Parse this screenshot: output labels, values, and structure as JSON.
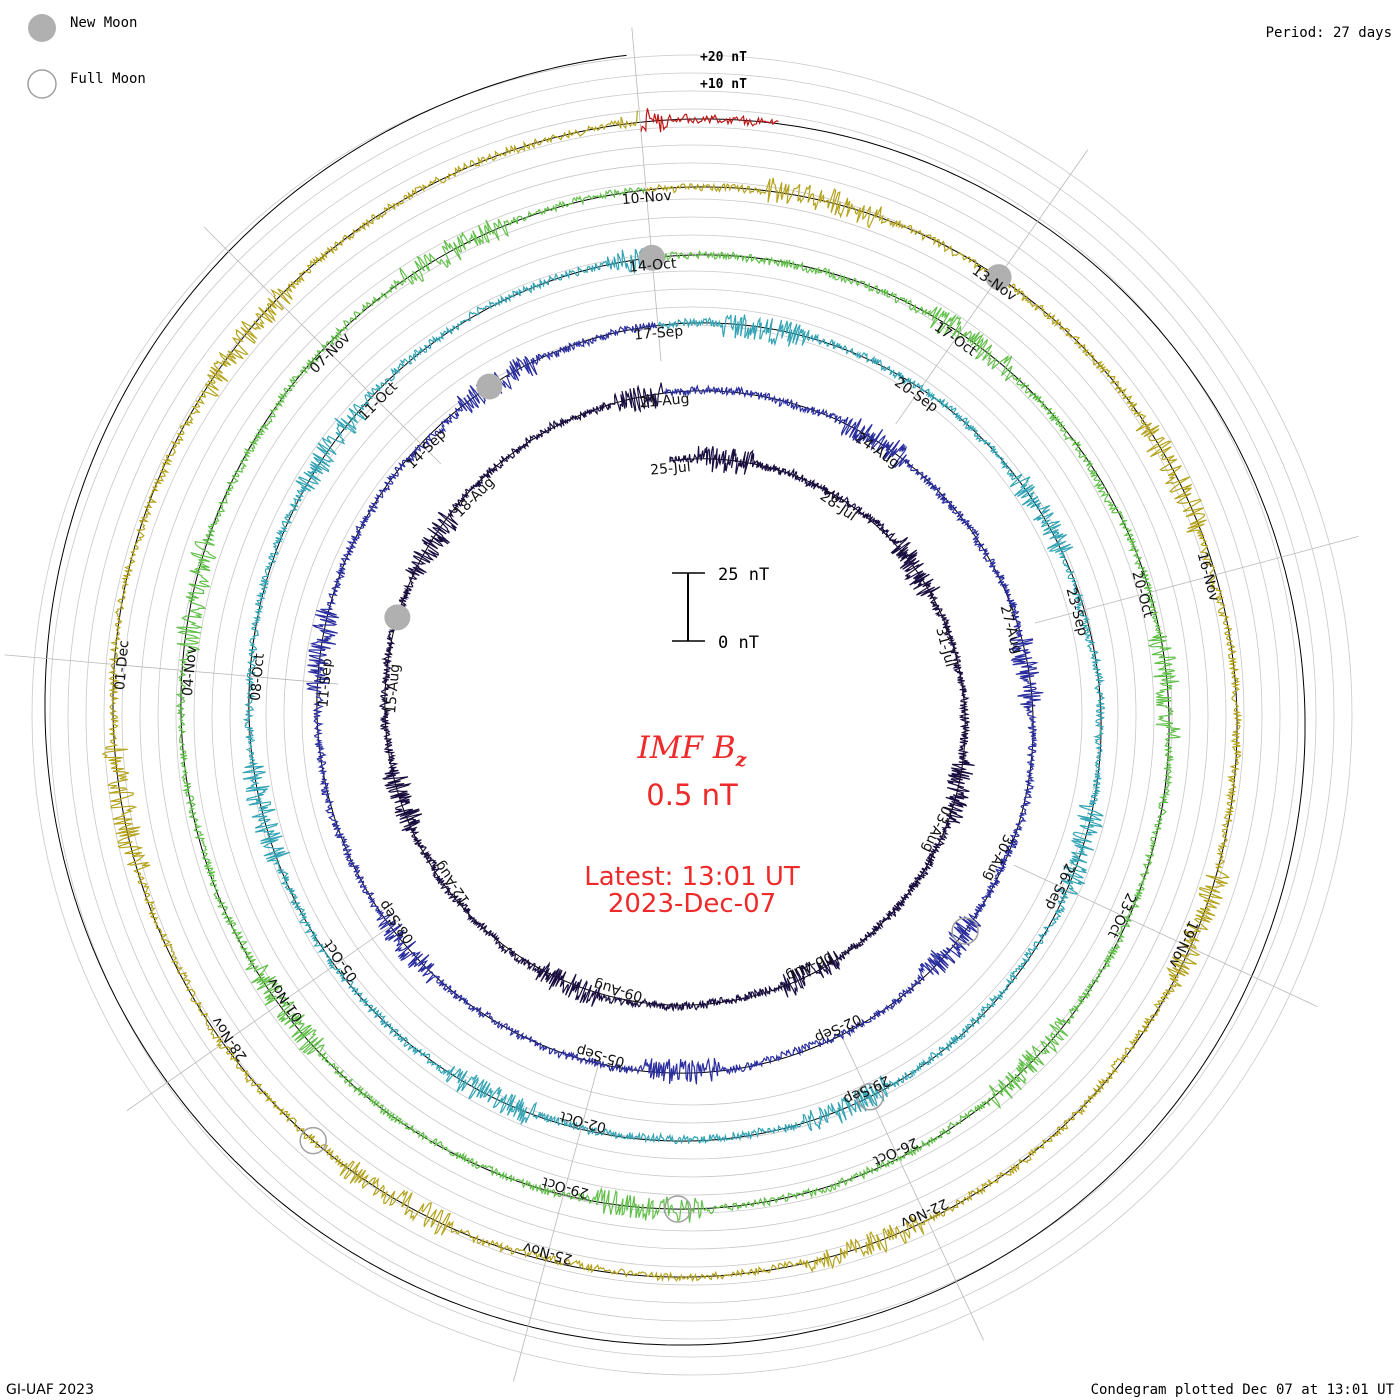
{
  "chart_data": {
    "type": "line",
    "subtype": "polar-condegram",
    "title": "IMF Bz",
    "title_main": "IMF B",
    "title_sub": "z",
    "current_value": "0.5 nT",
    "latest_time": "Latest: 13:01 UT",
    "latest_date": "2023-Dec-07",
    "period": "Period: 27 days",
    "credit": "GI-UAF 2023",
    "plotted": "Condegram plotted Dec 07 at 13:01 UT",
    "scale_bar": {
      "top_label": "25 nT",
      "bottom_label": "0 nT",
      "top_value": 25,
      "bottom_value": 0
    },
    "ring_labels": {
      "plus20": "+20 nT",
      "plus10": "+10 nT"
    },
    "legend": [
      {
        "name": "New Moon",
        "label": "New Moon",
        "marker": "filled-circle",
        "color": "#b0b0b0"
      },
      {
        "name": "Full Moon",
        "label": "Full Moon",
        "marker": "open-circle",
        "color": "#a0a0a0"
      }
    ],
    "series": [
      {
        "name": "rotation-1",
        "start": "25-Jul",
        "color": "#1a0e40"
      },
      {
        "name": "rotation-2",
        "start": "21-Aug",
        "color": "#2a2d9e"
      },
      {
        "name": "rotation-3",
        "start": "17-Sep",
        "color": "#33a4b5"
      },
      {
        "name": "rotation-4",
        "start": "14-Oct",
        "color": "#62c04a"
      },
      {
        "name": "rotation-5",
        "start": "10-Nov",
        "color": "#b5a31c"
      },
      {
        "name": "rotation-6",
        "start": "07-Dec",
        "color": "#c01515"
      }
    ],
    "date_labels": [
      [
        "25-Jul",
        "28-Jul",
        "31-Jul",
        "03-Aug",
        "06-Aug",
        "09-Aug",
        "12-Aug",
        "15-Aug",
        "18-Aug"
      ],
      [
        "21-Aug",
        "24-Aug",
        "27-Aug",
        "30-Aug",
        "02-Sep",
        "05-Sep",
        "08-Sep",
        "11-Sep",
        "14-Sep"
      ],
      [
        "17-Sep",
        "20-Sep",
        "23-Sep",
        "26-Sep",
        "29-Sep",
        "02-Oct",
        "05-Oct",
        "08-Oct",
        "11-Oct"
      ],
      [
        "14-Oct",
        "17-Oct",
        "20-Oct",
        "23-Oct",
        "26-Oct",
        "29-Oct",
        "01-Nov",
        "04-Nov",
        "07-Nov"
      ],
      [
        "10-Nov",
        "13-Nov",
        "16-Nov",
        "19-Nov",
        "22-Nov",
        "25-Nov",
        "28-Nov",
        "01-Dec"
      ]
    ],
    "moon_phases": [
      {
        "type": "new",
        "date": "16-Aug"
      },
      {
        "type": "full",
        "date": "31-Aug"
      },
      {
        "type": "new",
        "date": "15-Sep"
      },
      {
        "type": "full",
        "date": "29-Sep"
      },
      {
        "type": "new",
        "date": "14-Oct"
      },
      {
        "type": "full",
        "date": "28-Oct"
      },
      {
        "type": "new",
        "date": "13-Nov"
      },
      {
        "type": "full",
        "date": "27-Nov"
      }
    ],
    "days_per_rotation": 27,
    "value_range_nT": [
      -25,
      25
    ]
  }
}
